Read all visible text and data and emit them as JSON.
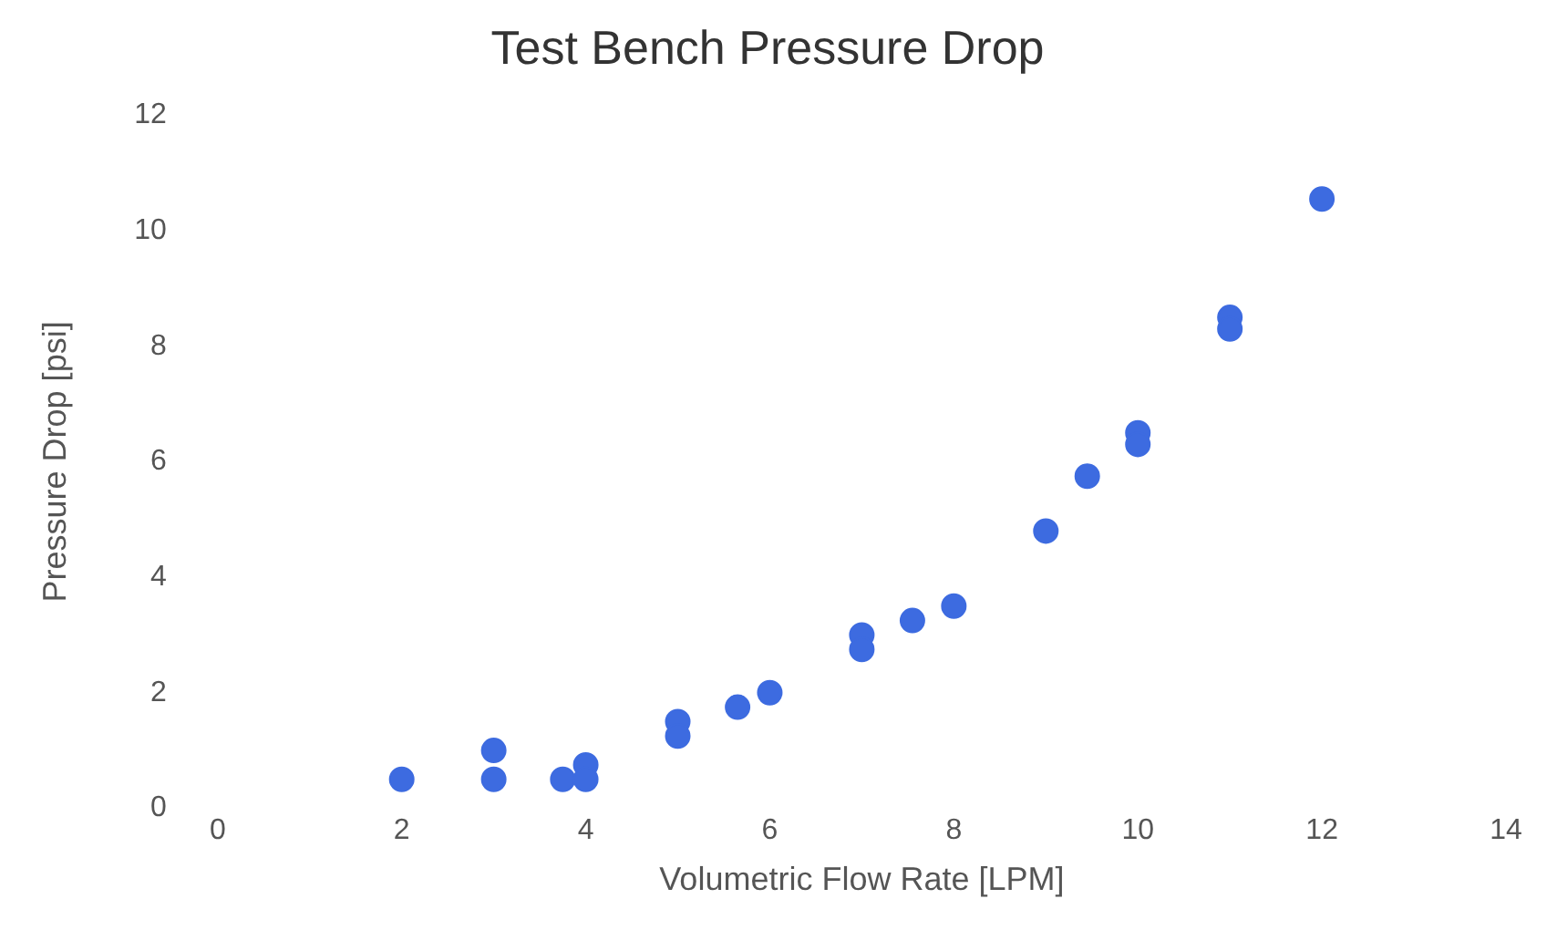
{
  "chart_data": {
    "type": "scatter",
    "title": "Test Bench Pressure Drop",
    "xlabel": "Volumetric Flow Rate [LPM]",
    "ylabel": "Pressure Drop [psi]",
    "x": [
      2,
      3,
      3,
      3.75,
      4,
      4,
      5,
      5,
      5.65,
      6,
      7,
      7,
      7.55,
      8,
      9,
      9.45,
      10,
      10,
      11,
      11,
      12
    ],
    "series": [
      {
        "color": "#3d6be0",
        "values": [
          0.5,
          1.0,
          0.5,
          0.5,
          0.75,
          0.5,
          1.5,
          1.25,
          1.75,
          2.0,
          3.0,
          2.75,
          3.25,
          3.5,
          4.8,
          5.75,
          6.5,
          6.3,
          8.5,
          8.3,
          10.55
        ]
      }
    ],
    "xlim": [
      0,
      14
    ],
    "xticks": [
      0,
      2,
      4,
      6,
      8,
      10,
      12,
      14
    ],
    "ylim": [
      0,
      12
    ],
    "yticks": [
      0,
      2,
      4,
      6,
      8,
      10,
      12
    ],
    "grid": false,
    "legend": false,
    "marker": "circle"
  }
}
